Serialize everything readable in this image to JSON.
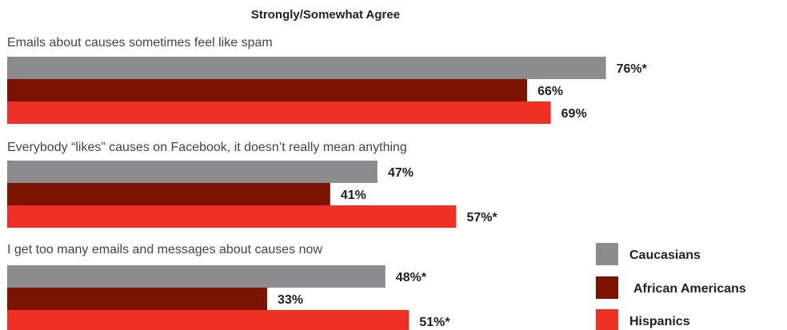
{
  "chart_data": {
    "type": "bar",
    "orientation": "horizontal",
    "title": "Strongly/Somewhat Agree",
    "xlim": [
      0,
      100
    ],
    "categories": [
      "Emails about causes sometimes feel like spam",
      "Everybody “likes” causes on Facebook, it doesn’t really mean anything",
      "I get too many emails and messages about causes now"
    ],
    "series": [
      {
        "name": "Caucasians",
        "color": "#8c8c8e",
        "values": [
          76,
          47,
          48
        ],
        "labels": [
          "76%*",
          "47%",
          "48%*"
        ]
      },
      {
        "name": "African Americans",
        "color": "#7a1400",
        "values": [
          66,
          41,
          33
        ],
        "labels": [
          "66%",
          "41%",
          "33%"
        ]
      },
      {
        "name": "Hispanics",
        "color": "#ee3124",
        "values": [
          69,
          57,
          51
        ],
        "labels": [
          "69%",
          "57%*",
          "51%*"
        ]
      }
    ],
    "legend_position": "bottom-right",
    "grid": false
  }
}
